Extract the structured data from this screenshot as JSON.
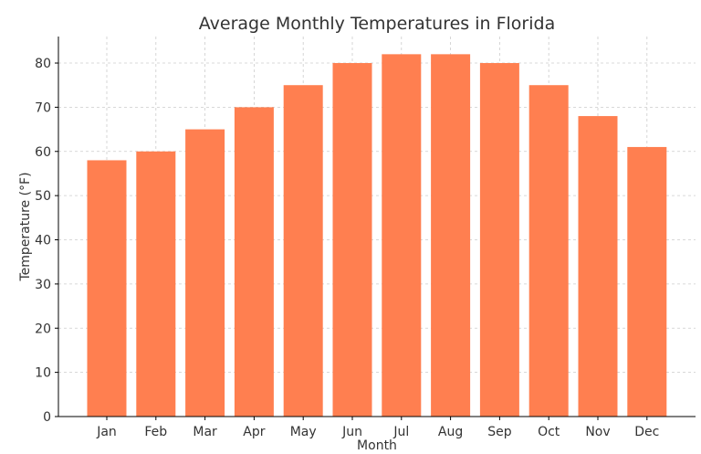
{
  "chart_data": {
    "type": "bar",
    "title": "Average Monthly Temperatures in Florida",
    "xlabel": "Month",
    "ylabel": "Temperature (°F)",
    "categories": [
      "Jan",
      "Feb",
      "Mar",
      "Apr",
      "May",
      "Jun",
      "Jul",
      "Aug",
      "Sep",
      "Oct",
      "Nov",
      "Dec"
    ],
    "values": [
      58,
      60,
      65,
      70,
      75,
      80,
      82,
      82,
      80,
      75,
      68,
      61
    ],
    "ylim": [
      0,
      86
    ],
    "yticks": [
      0,
      10,
      20,
      30,
      40,
      50,
      60,
      70,
      80
    ],
    "grid": true,
    "bar_color": "#FF7F50"
  }
}
